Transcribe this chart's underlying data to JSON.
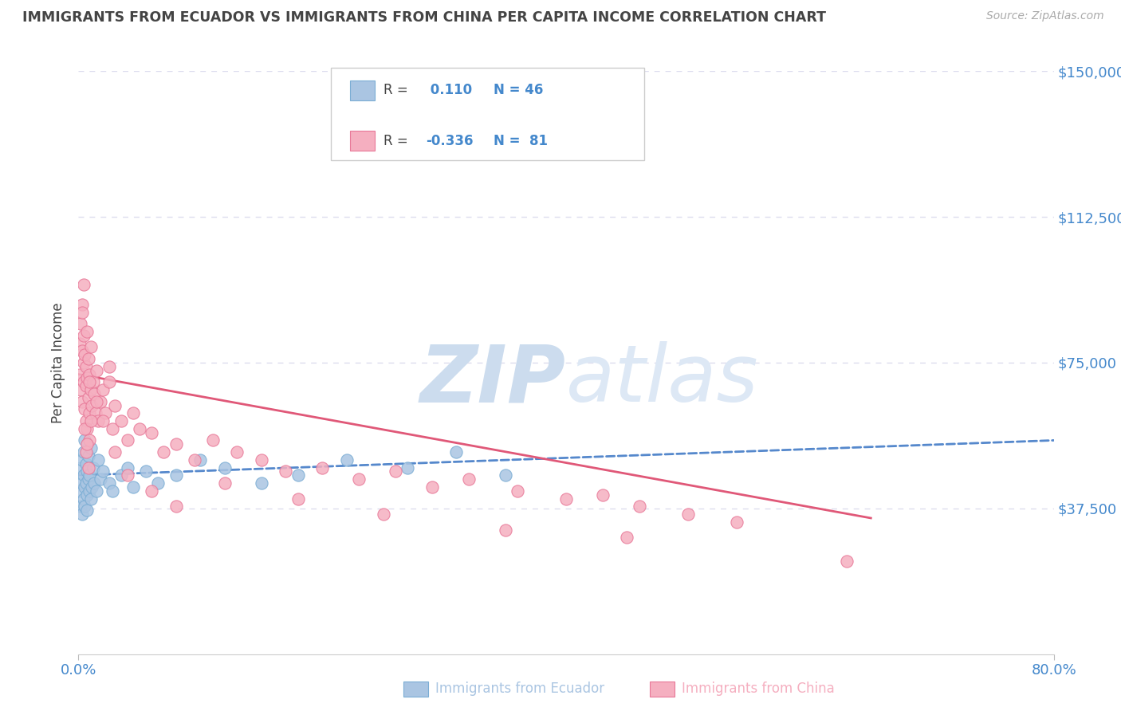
{
  "title": "IMMIGRANTS FROM ECUADOR VS IMMIGRANTS FROM CHINA PER CAPITA INCOME CORRELATION CHART",
  "source": "Source: ZipAtlas.com",
  "ylabel": "Per Capita Income",
  "xlim": [
    0.0,
    0.8
  ],
  "ylim": [
    0,
    150000
  ],
  "yticks": [
    0,
    37500,
    75000,
    112500,
    150000
  ],
  "ytick_labels": [
    "",
    "$37,500",
    "$75,000",
    "$112,500",
    "$150,000"
  ],
  "xtick_labels": [
    "0.0%",
    "80.0%"
  ],
  "ecuador_R": 0.11,
  "ecuador_N": 46,
  "china_R": -0.336,
  "china_N": 81,
  "ecuador_color": "#aac5e2",
  "ecuador_edge": "#7aadd4",
  "china_color": "#f5afc0",
  "china_edge": "#e87898",
  "ecuador_line_color": "#5588cc",
  "china_line_color": "#e05878",
  "axis_label_color": "#4488cc",
  "title_color": "#444444",
  "watermark_zip_color": "#ccdcee",
  "watermark_atlas_color": "#dde8f5",
  "background_color": "#ffffff",
  "grid_color": "#ddddee",
  "ecuador_scatter_x": [
    0.001,
    0.002,
    0.002,
    0.003,
    0.003,
    0.003,
    0.004,
    0.004,
    0.004,
    0.005,
    0.005,
    0.005,
    0.006,
    0.006,
    0.007,
    0.007,
    0.007,
    0.008,
    0.008,
    0.009,
    0.009,
    0.01,
    0.01,
    0.011,
    0.012,
    0.013,
    0.015,
    0.016,
    0.018,
    0.02,
    0.025,
    0.028,
    0.035,
    0.04,
    0.045,
    0.055,
    0.065,
    0.08,
    0.1,
    0.12,
    0.15,
    0.18,
    0.22,
    0.27,
    0.31,
    0.35
  ],
  "ecuador_scatter_y": [
    42000,
    48000,
    38000,
    44000,
    50000,
    36000,
    46000,
    52000,
    40000,
    43000,
    55000,
    38000,
    44000,
    49000,
    41000,
    47000,
    37000,
    45000,
    51000,
    42000,
    46000,
    40000,
    53000,
    43000,
    48000,
    44000,
    42000,
    50000,
    45000,
    47000,
    44000,
    42000,
    46000,
    48000,
    43000,
    47000,
    44000,
    46000,
    50000,
    48000,
    44000,
    46000,
    50000,
    48000,
    52000,
    46000
  ],
  "china_scatter_x": [
    0.001,
    0.001,
    0.002,
    0.002,
    0.003,
    0.003,
    0.003,
    0.004,
    0.004,
    0.004,
    0.005,
    0.005,
    0.006,
    0.006,
    0.006,
    0.007,
    0.007,
    0.007,
    0.008,
    0.008,
    0.009,
    0.009,
    0.009,
    0.01,
    0.01,
    0.011,
    0.012,
    0.013,
    0.014,
    0.015,
    0.016,
    0.018,
    0.02,
    0.022,
    0.025,
    0.028,
    0.03,
    0.035,
    0.04,
    0.045,
    0.05,
    0.06,
    0.07,
    0.08,
    0.095,
    0.11,
    0.13,
    0.15,
    0.17,
    0.2,
    0.23,
    0.26,
    0.29,
    0.32,
    0.36,
    0.4,
    0.43,
    0.46,
    0.5,
    0.54,
    0.003,
    0.004,
    0.005,
    0.006,
    0.007,
    0.008,
    0.009,
    0.01,
    0.015,
    0.02,
    0.025,
    0.03,
    0.04,
    0.06,
    0.08,
    0.12,
    0.18,
    0.25,
    0.35,
    0.45,
    0.63
  ],
  "china_scatter_y": [
    72000,
    80000,
    68000,
    85000,
    78000,
    65000,
    90000,
    75000,
    82000,
    70000,
    63000,
    77000,
    69000,
    74000,
    60000,
    71000,
    83000,
    58000,
    66000,
    76000,
    62000,
    72000,
    55000,
    68000,
    79000,
    64000,
    70000,
    67000,
    62000,
    73000,
    60000,
    65000,
    68000,
    62000,
    70000,
    58000,
    64000,
    60000,
    55000,
    62000,
    58000,
    57000,
    52000,
    54000,
    50000,
    55000,
    52000,
    50000,
    47000,
    48000,
    45000,
    47000,
    43000,
    45000,
    42000,
    40000,
    41000,
    38000,
    36000,
    34000,
    88000,
    95000,
    58000,
    52000,
    54000,
    48000,
    70000,
    60000,
    65000,
    60000,
    74000,
    52000,
    46000,
    42000,
    38000,
    44000,
    40000,
    36000,
    32000,
    30000,
    24000
  ]
}
